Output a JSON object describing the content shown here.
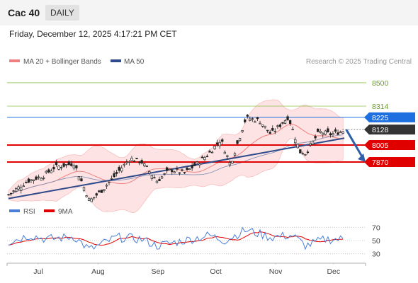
{
  "header": {
    "ticker": "Cac 40",
    "timeframe": "DAILY",
    "datetime": "Friday, December 12, 2025 4:17:21 PM CET"
  },
  "credit": "Research © 2025 Trading Central",
  "colors": {
    "ma20": "#f08080",
    "band": "#fde0e0",
    "ma50": "#2e4a8a",
    "resistance_green": "#8bc34a",
    "blue_level": "#1e6fe0",
    "red_level": "#e00000",
    "price_tag": "#333333",
    "rsi": "#4a7fd8",
    "rsi_ma": "#e00000",
    "arrow": "#2e5fa8"
  },
  "chart_data": [
    {
      "type": "line",
      "title": "",
      "legend": [
        {
          "name": "MA 20 + Bollinger Bands",
          "color": "#f08080"
        },
        {
          "name": "MA 50",
          "color": "#2e4a8a"
        }
      ],
      "x_ticks": [
        "Jul",
        "Aug",
        "Sep",
        "Oct",
        "Nov",
        "Dec"
      ],
      "y_range": [
        7550,
        8640
      ],
      "levels": [
        {
          "value": 8500,
          "label": "8500",
          "style": "green"
        },
        {
          "value": 8314,
          "label": "8314",
          "style": "green"
        },
        {
          "value": 8225,
          "label": "8225",
          "style": "blue"
        },
        {
          "value": 8128,
          "label": "8128",
          "style": "price"
        },
        {
          "value": 8005,
          "label": "8005",
          "style": "red"
        },
        {
          "value": 7870,
          "label": "7870",
          "style": "red"
        }
      ],
      "trendline": {
        "from": [
          "2025-06-20",
          7580
        ],
        "to": [
          "2025-12-11",
          8060
        ]
      },
      "close_approx": [
        [
          "2025-06-20",
          7610
        ],
        [
          "2025-06-30",
          7720
        ],
        [
          "2025-07-08",
          7760
        ],
        [
          "2025-07-14",
          7830
        ],
        [
          "2025-07-24",
          7860
        ],
        [
          "2025-08-01",
          7560
        ],
        [
          "2025-08-07",
          7640
        ],
        [
          "2025-08-14",
          7760
        ],
        [
          "2025-08-22",
          7900
        ],
        [
          "2025-08-28",
          7870
        ],
        [
          "2025-09-05",
          7720
        ],
        [
          "2025-09-12",
          7810
        ],
        [
          "2025-09-19",
          7780
        ],
        [
          "2025-09-26",
          7860
        ],
        [
          "2025-10-02",
          7940
        ],
        [
          "2025-10-08",
          8050
        ],
        [
          "2025-10-13",
          7850
        ],
        [
          "2025-10-21",
          8220
        ],
        [
          "2025-10-28",
          8200
        ],
        [
          "2025-11-03",
          8090
        ],
        [
          "2025-11-12",
          8230
        ],
        [
          "2025-11-18",
          7950
        ],
        [
          "2025-11-21",
          7940
        ],
        [
          "2025-11-28",
          8110
        ],
        [
          "2025-12-04",
          8090
        ],
        [
          "2025-12-11",
          8120
        ]
      ],
      "forecast_arrow": {
        "from": [
          "2025-12-12",
          8128
        ],
        "to": [
          "2025-12-22",
          7870
        ]
      }
    },
    {
      "type": "line",
      "legend": [
        {
          "name": "RSI",
          "color": "#4a7fd8"
        },
        {
          "name": "9MA",
          "color": "#e00000"
        }
      ],
      "y_ticks": [
        70,
        50,
        30
      ],
      "y_range": [
        20,
        80
      ],
      "rsi_approx": [
        [
          "2025-06-20",
          48
        ],
        [
          "2025-07-01",
          58
        ],
        [
          "2025-07-10",
          52
        ],
        [
          "2025-07-24",
          56
        ],
        [
          "2025-08-01",
          36
        ],
        [
          "2025-08-15",
          55
        ],
        [
          "2025-08-28",
          52
        ],
        [
          "2025-09-05",
          42
        ],
        [
          "2025-09-19",
          50
        ],
        [
          "2025-10-02",
          58
        ],
        [
          "2025-10-10",
          50
        ],
        [
          "2025-10-21",
          66
        ],
        [
          "2025-11-03",
          55
        ],
        [
          "2025-11-14",
          58
        ],
        [
          "2025-11-21",
          42
        ],
        [
          "2025-12-01",
          52
        ],
        [
          "2025-12-11",
          52
        ]
      ]
    }
  ]
}
